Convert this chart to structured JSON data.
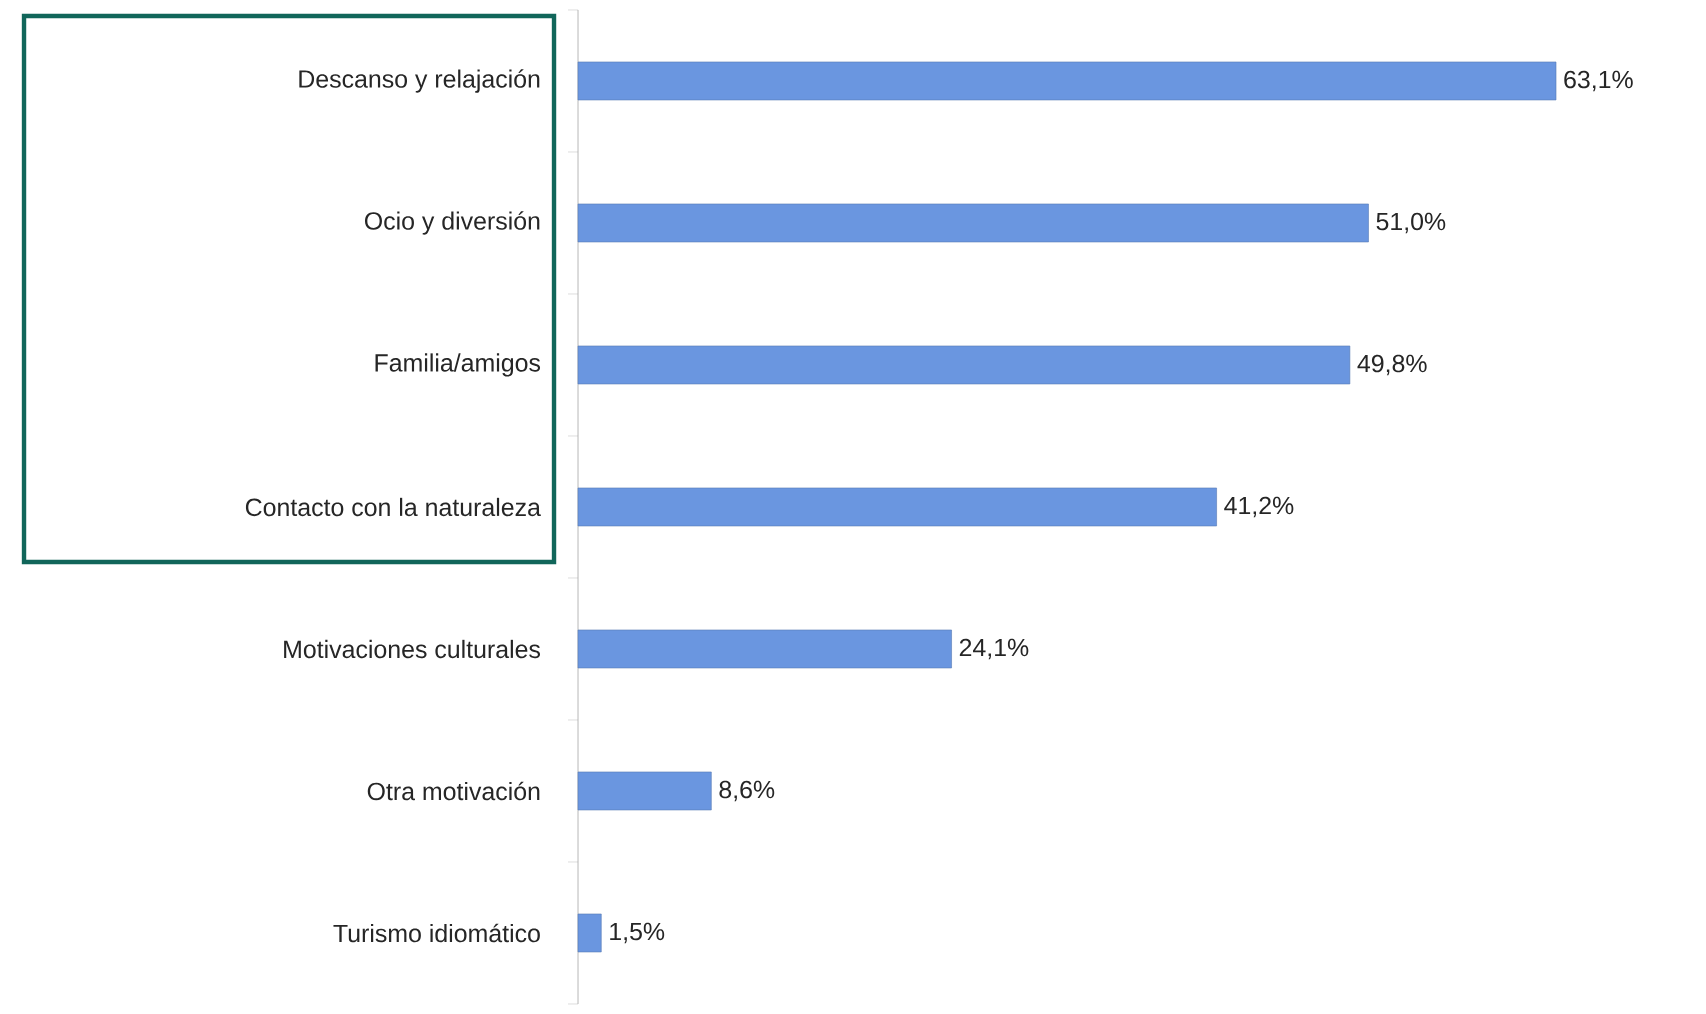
{
  "chart_data": {
    "type": "bar",
    "orientation": "horizontal",
    "categories": [
      "Descanso y relajación",
      "Ocio y diversión",
      "Familia/amigos",
      "Contacto con la naturaleza",
      "Motivaciones culturales",
      "Otra motivación",
      "Turismo idiomático"
    ],
    "values": [
      63.1,
      51.0,
      49.8,
      41.2,
      24.1,
      8.6,
      1.5
    ],
    "value_labels": [
      "63,1%",
      "51,0%",
      "49,8%",
      "41,2%",
      "24,1%",
      "8,6%",
      "1,5%"
    ],
    "color": "#6a96e0",
    "tick_labels": "y"
  }
}
